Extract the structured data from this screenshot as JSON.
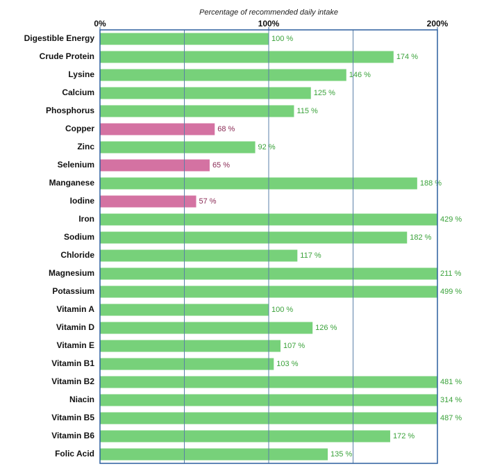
{
  "chart_data": {
    "type": "hbar",
    "x_label": "Percentage of recommended daily intake",
    "categories": [
      "Digestible Energy",
      "Crude Protein",
      "Lysine",
      "Calcium",
      "Phosphorus",
      "Copper",
      "Zinc",
      "Selenium",
      "Manganese",
      "Iodine",
      "Iron",
      "Sodium",
      "Chloride",
      "Magnesium",
      "Potassium",
      "Vitamin A",
      "Vitamin D",
      "Vitamin E",
      "Vitamin B1",
      "Vitamin B2",
      "Niacin",
      "Vitamin B5",
      "Vitamin B6",
      "Folic Acid"
    ],
    "values": [
      100,
      174,
      146,
      125,
      115,
      68,
      92,
      65,
      188,
      57,
      429,
      182,
      117,
      211,
      499,
      100,
      126,
      107,
      103,
      481,
      314,
      487,
      172,
      135
    ],
    "value_labels": [
      "100 %",
      "174 %",
      "146 %",
      "125 %",
      "115 %",
      "68 %",
      "92 %",
      "65 %",
      "188 %",
      "57 %",
      "429 %",
      "182 %",
      "117 %",
      "211 %",
      "499 %",
      "100 %",
      "126 %",
      "107 %",
      "103 %",
      "481 %",
      "314 %",
      "487 %",
      "172 %",
      "135 %"
    ],
    "colors": [
      "#77d17a",
      "#77d17a",
      "#77d17a",
      "#77d17a",
      "#77d17a",
      "#d472a2",
      "#77d17a",
      "#d472a2",
      "#77d17a",
      "#d472a2",
      "#77d17a",
      "#77d17a",
      "#77d17a",
      "#77d17a",
      "#77d17a",
      "#77d17a",
      "#77d17a",
      "#77d17a",
      "#77d17a",
      "#77d17a",
      "#77d17a",
      "#77d17a",
      "#77d17a",
      "#77d17a"
    ],
    "xlim": [
      0,
      200
    ],
    "xticks": [
      {
        "value": 0,
        "label": "0%"
      },
      {
        "value": 100,
        "label": "100%"
      },
      {
        "value": 200,
        "label": "200%"
      }
    ],
    "xgrid": [
      50,
      100,
      150
    ]
  }
}
